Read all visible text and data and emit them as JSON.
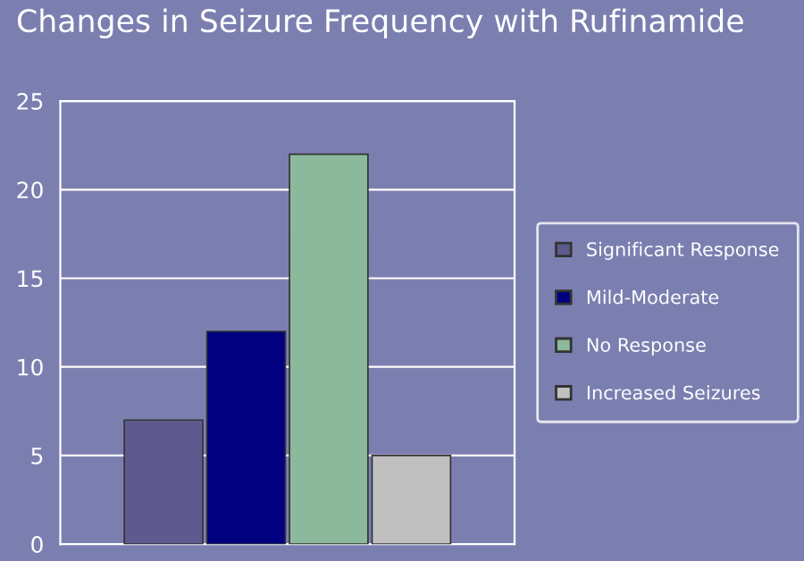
{
  "chart_data": {
    "type": "bar",
    "title": "Changes in Seizure Frequency with Rufinamide",
    "categories": [
      null
    ],
    "series": [
      {
        "name": "Significant Response",
        "color": "#5e5a8e",
        "values": [
          7
        ]
      },
      {
        "name": "Mild-Moderate",
        "color": "#000080",
        "values": [
          12
        ]
      },
      {
        "name": "No Response",
        "color": "#8cb89c",
        "values": [
          22
        ]
      },
      {
        "name": "Increased Seizures",
        "color": "#c0c0c0",
        "values": [
          5
        ]
      }
    ],
    "ylim": [
      0,
      25
    ],
    "yticks": [
      0,
      5,
      10,
      15,
      20,
      25
    ],
    "grid": "y",
    "legend": "right"
  }
}
